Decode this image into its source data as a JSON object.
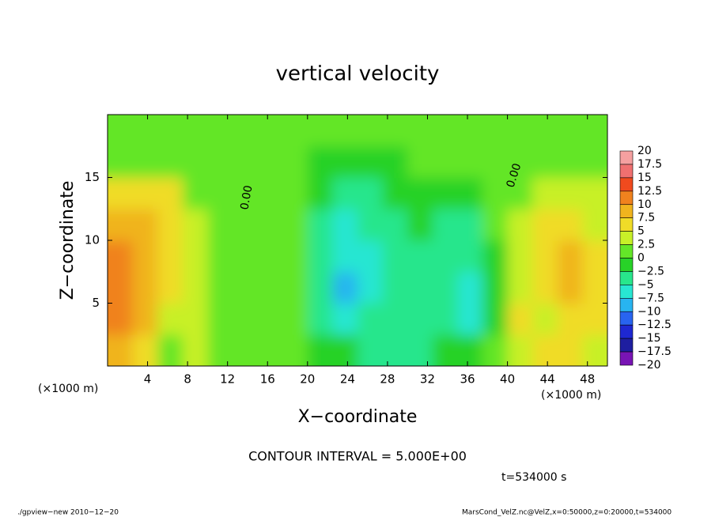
{
  "chart_data": {
    "type": "heatmap",
    "title": "vertical velocity",
    "x_label": "X−coordinate",
    "y_label": "Z−coordinate",
    "x_unit_label": "(×1000 m)",
    "y_unit_label": "(×1000 m)",
    "contour_interval": "CONTOUR INTERVAL = 5.000E+00",
    "time_label": "t=534000 s",
    "footer_left": "./gpview−new  2010−12−20",
    "footer_right": "MarsCond_VelZ.nc@VelZ,x=0:50000,z=0:20000,t=534000",
    "annotations": [
      "0.00",
      "0.00"
    ],
    "xlim": [
      0,
      50
    ],
    "ylim": [
      0,
      20
    ],
    "xticks": [
      4,
      8,
      12,
      16,
      20,
      24,
      28,
      32,
      36,
      40,
      44,
      48
    ],
    "yticks": [
      5,
      10,
      15
    ],
    "x": [
      1.25,
      3.75,
      6.25,
      8.75,
      11.25,
      13.75,
      16.25,
      18.75,
      21.25,
      23.75,
      26.25,
      28.75,
      31.25,
      33.75,
      36.25,
      38.75,
      41.25,
      43.75,
      46.25,
      48.75
    ],
    "z": [
      1.25,
      3.75,
      6.25,
      8.75,
      11.25,
      13.75,
      16.25,
      18.75
    ],
    "values": [
      [
        8,
        5,
        2,
        3,
        2,
        2,
        1,
        0,
        -1,
        -2,
        -3,
        -3,
        -3,
        -2,
        -1,
        0,
        3,
        5,
        6,
        3
      ],
      [
        11,
        8,
        4,
        3,
        2,
        2,
        1,
        0,
        -3,
        -6,
        -5,
        -3,
        -3,
        -5,
        -6,
        -1,
        5,
        4,
        6,
        5
      ],
      [
        12,
        9,
        5,
        3,
        2,
        2,
        1,
        0,
        -5,
        -10,
        -6,
        -4,
        -3,
        -5,
        -6,
        -1,
        3,
        6,
        9,
        7
      ],
      [
        11,
        9,
        6,
        3,
        2,
        2,
        1,
        0,
        -5,
        -7,
        -6,
        -4,
        -3,
        -5,
        -5,
        -1,
        3,
        6,
        9,
        6
      ],
      [
        8,
        8,
        7,
        3,
        2,
        2,
        1,
        0,
        -3,
        -6,
        -5,
        -3,
        -2,
        -4,
        -3,
        0,
        3,
        5,
        5,
        4
      ],
      [
        5,
        6,
        5,
        2,
        2,
        2,
        1,
        0,
        -2,
        -4,
        -3,
        -2,
        -1,
        -1,
        -1,
        0,
        2,
        3,
        3,
        3
      ],
      [
        2,
        2,
        2,
        2,
        2,
        1,
        1,
        0,
        -1,
        -2,
        -1,
        -1,
        0,
        0,
        0,
        0,
        1,
        1,
        2,
        2
      ],
      [
        1,
        1,
        1,
        1,
        1,
        1,
        1,
        0,
        0,
        0,
        0,
        0,
        0,
        0,
        0,
        0,
        1,
        1,
        1,
        1
      ]
    ],
    "colorbar_levels": [
      20,
      17.5,
      15,
      12.5,
      10,
      7.5,
      5,
      2.5,
      0,
      {
        "value": -2.5,
        "label": "−2.5"
      },
      {
        "value": -5,
        "label": "−5"
      },
      {
        "value": -7.5,
        "label": "−7.5"
      },
      {
        "value": -10,
        "label": "−10"
      },
      {
        "value": -12.5,
        "label": "−12.5"
      },
      {
        "value": -15,
        "label": "−15"
      },
      {
        "value": -17.5,
        "label": "−17.5"
      },
      {
        "value": -20,
        "label": "−20"
      }
    ],
    "colors": [
      "#f5a0a0",
      "#f07070",
      "#f04a1e",
      "#f0821e",
      "#f0b41e",
      "#f0dc28",
      "#c8f028",
      "#64e628",
      "#28d228",
      "#28e68c",
      "#28e6d2",
      "#28b4f0",
      "#2864f0",
      "#1e28d2",
      "#1e1ea0",
      "#7814b4"
    ]
  }
}
